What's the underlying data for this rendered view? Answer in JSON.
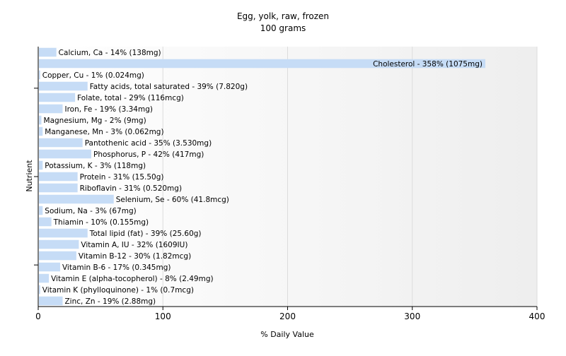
{
  "chart_data": {
    "type": "bar",
    "orientation": "horizontal",
    "title": "Egg, yolk, raw, frozen",
    "subtitle": "100 grams",
    "xlabel": "% Daily Value",
    "ylabel": "Nutrient",
    "xlim": [
      0,
      400
    ],
    "xticks": [
      0,
      100,
      200,
      300,
      400
    ],
    "grid": true,
    "bar_color": "#c6dcf6",
    "categories": [
      "Calcium, Ca",
      "Cholesterol",
      "Copper, Cu",
      "Fatty acids, total saturated",
      "Folate, total",
      "Iron, Fe",
      "Magnesium, Mg",
      "Manganese, Mn",
      "Pantothenic acid",
      "Phosphorus, P",
      "Potassium, K",
      "Protein",
      "Riboflavin",
      "Selenium, Se",
      "Sodium, Na",
      "Thiamin",
      "Total lipid (fat)",
      "Vitamin A, IU",
      "Vitamin B-12",
      "Vitamin B-6",
      "Vitamin E (alpha-tocopherol)",
      "Vitamin K (phylloquinone)",
      "Zinc, Zn"
    ],
    "values": [
      14,
      358,
      1,
      39,
      29,
      19,
      2,
      3,
      35,
      42,
      3,
      31,
      31,
      60,
      3,
      10,
      39,
      32,
      30,
      17,
      8,
      1,
      19
    ],
    "labels": [
      "Calcium, Ca - 14% (138mg)",
      "Cholesterol - 358% (1075mg)",
      "Copper, Cu - 1% (0.024mg)",
      "Fatty acids, total saturated - 39% (7.820g)",
      "Folate, total - 29% (116mcg)",
      "Iron, Fe - 19% (3.34mg)",
      "Magnesium, Mg - 2% (9mg)",
      "Manganese, Mn - 3% (0.062mg)",
      "Pantothenic acid - 35% (3.530mg)",
      "Phosphorus, P - 42% (417mg)",
      "Potassium, K - 3% (118mg)",
      "Protein - 31% (15.50g)",
      "Riboflavin - 31% (0.520mg)",
      "Selenium, Se - 60% (41.8mcg)",
      "Sodium, Na - 3% (67mg)",
      "Thiamin - 10% (0.155mg)",
      "Total lipid (fat) - 39% (25.60g)",
      "Vitamin A, IU - 32% (1609IU)",
      "Vitamin B-12 - 30% (1.82mcg)",
      "Vitamin B-6 - 17% (0.345mg)",
      "Vitamin E (alpha-tocopherol) - 8% (2.49mg)",
      "Vitamin K (phylloquinone) - 1% (0.7mcg)",
      "Zinc, Zn - 19% (2.88mg)"
    ]
  }
}
